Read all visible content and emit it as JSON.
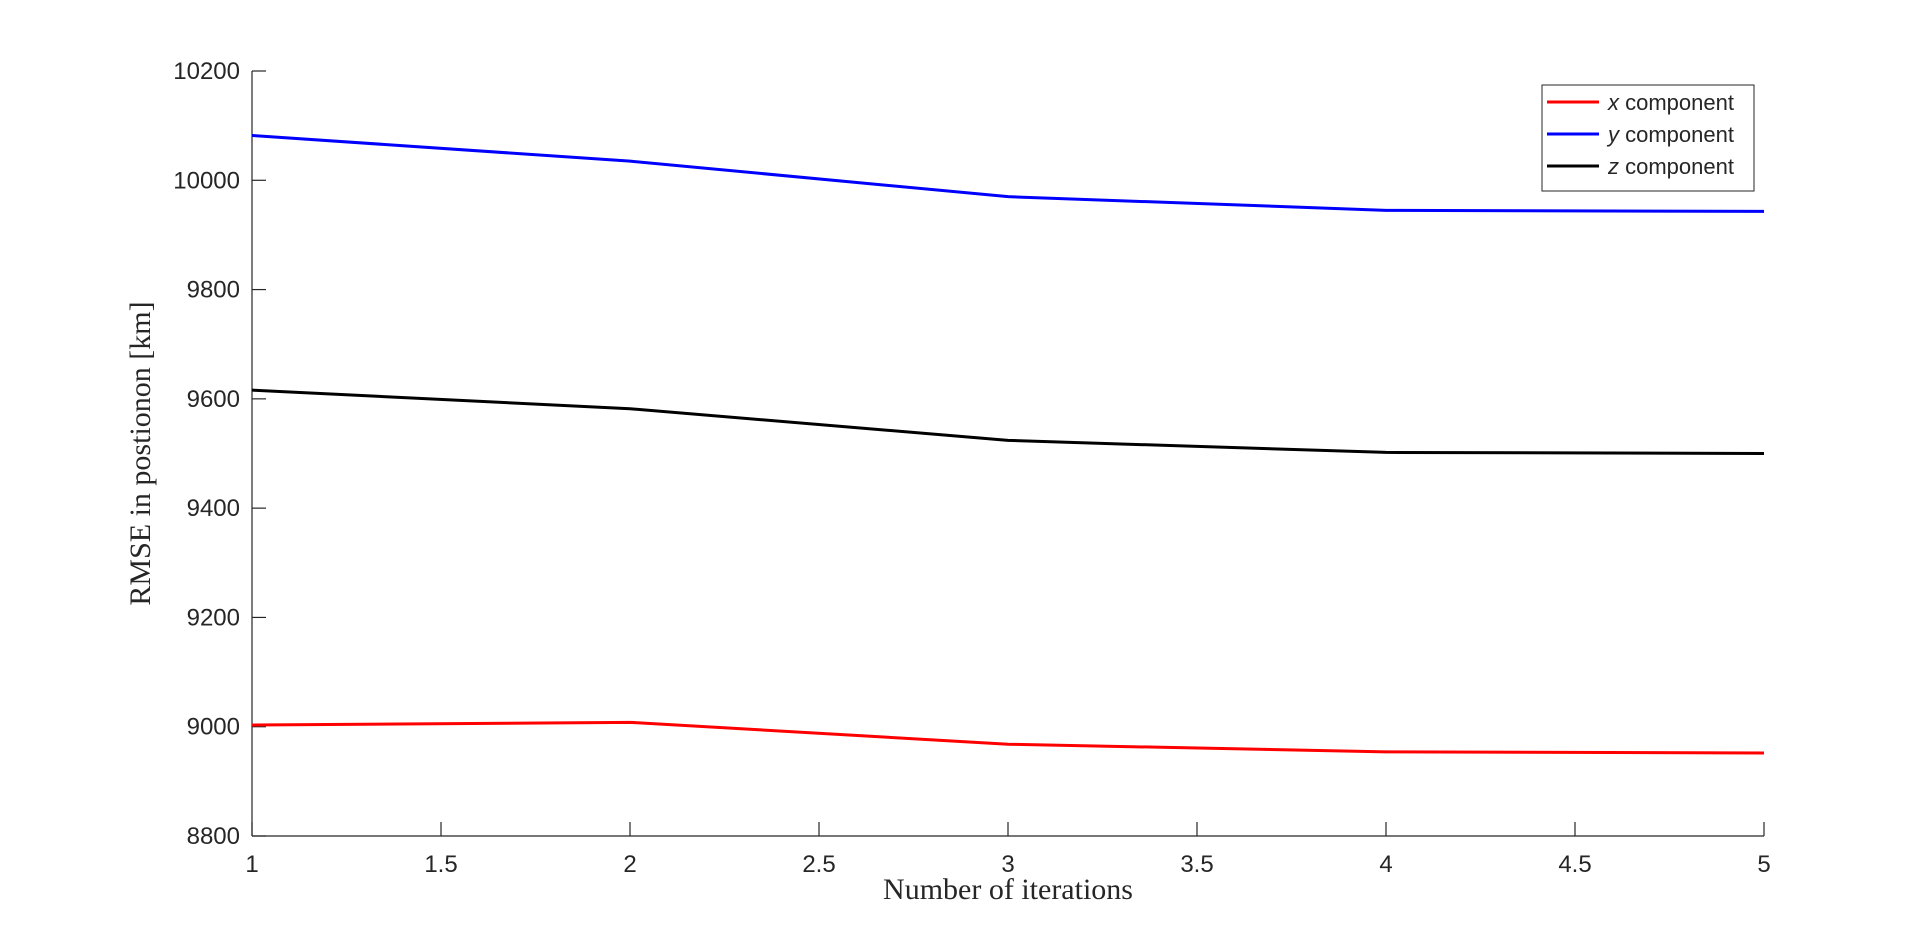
{
  "chart_data": {
    "type": "line",
    "title": "",
    "xlabel": "Number of iterations",
    "ylabel": "RMSE in postionon [km]",
    "xlim": [
      1,
      5
    ],
    "ylim": [
      8800,
      10200
    ],
    "xticks": [
      1,
      1.5,
      2,
      2.5,
      3,
      3.5,
      4,
      4.5,
      5
    ],
    "xtick_labels": [
      "1",
      "1.5",
      "2",
      "2.5",
      "3",
      "3.5",
      "4",
      "4.5",
      "5"
    ],
    "yticks": [
      8800,
      9000,
      9200,
      9400,
      9600,
      9800,
      10000,
      10200
    ],
    "ytick_labels": [
      "8800",
      "9000",
      "9200",
      "9400",
      "9600",
      "9800",
      "10000",
      "10200"
    ],
    "grid": false,
    "legend_position": "top-right",
    "x": [
      1,
      2,
      3,
      4,
      5
    ],
    "series": [
      {
        "name": "x component",
        "legend_var": "x",
        "legend_rest": " component",
        "color": "#ff0000",
        "values": [
          9003,
          9008,
          8968,
          8954,
          8952
        ]
      },
      {
        "name": "y component",
        "legend_var": "y",
        "legend_rest": " component",
        "color": "#0000ff",
        "values": [
          10082,
          10035,
          9970,
          9945,
          9943
        ]
      },
      {
        "name": "z component",
        "legend_var": "z",
        "legend_rest": " component",
        "color": "#000000",
        "values": [
          9616,
          9582,
          9524,
          9502,
          9500
        ]
      }
    ]
  }
}
